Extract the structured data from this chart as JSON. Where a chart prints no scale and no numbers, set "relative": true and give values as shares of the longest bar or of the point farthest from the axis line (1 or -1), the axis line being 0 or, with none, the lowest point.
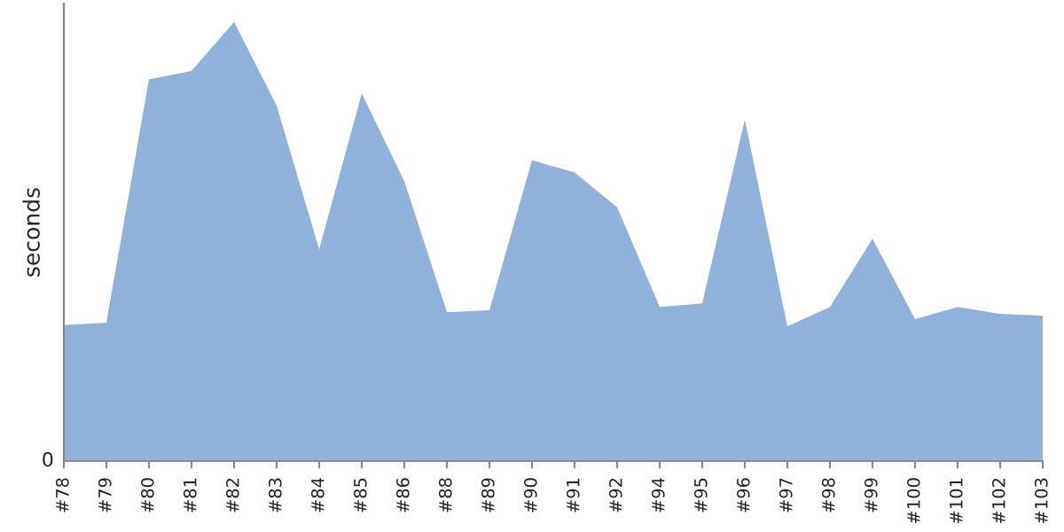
{
  "chart_data": {
    "type": "area",
    "ylabel": "seconds",
    "relative": true,
    "annotations": [
      "0"
    ],
    "categories": [
      "#78",
      "#79",
      "#80",
      "#81",
      "#82",
      "#83",
      "#84",
      "#85",
      "#86",
      "#88",
      "#89",
      "#90",
      "#91",
      "#92",
      "#94",
      "#95",
      "#96",
      "#97",
      "#98",
      "#99",
      "#100",
      "#101",
      "#102",
      "#103"
    ],
    "series": [
      {
        "color": "#8fb1da",
        "values": [
          0.31,
          0.315,
          0.869,
          0.888,
          1,
          0.809,
          0.482,
          0.837,
          0.637,
          0.339,
          0.343,
          0.685,
          0.657,
          0.578,
          0.351,
          0.359,
          0.777,
          0.307,
          0.351,
          0.506,
          0.323,
          0.351,
          0.335,
          0.331
        ]
      }
    ],
    "grid": false,
    "legend": false
  }
}
